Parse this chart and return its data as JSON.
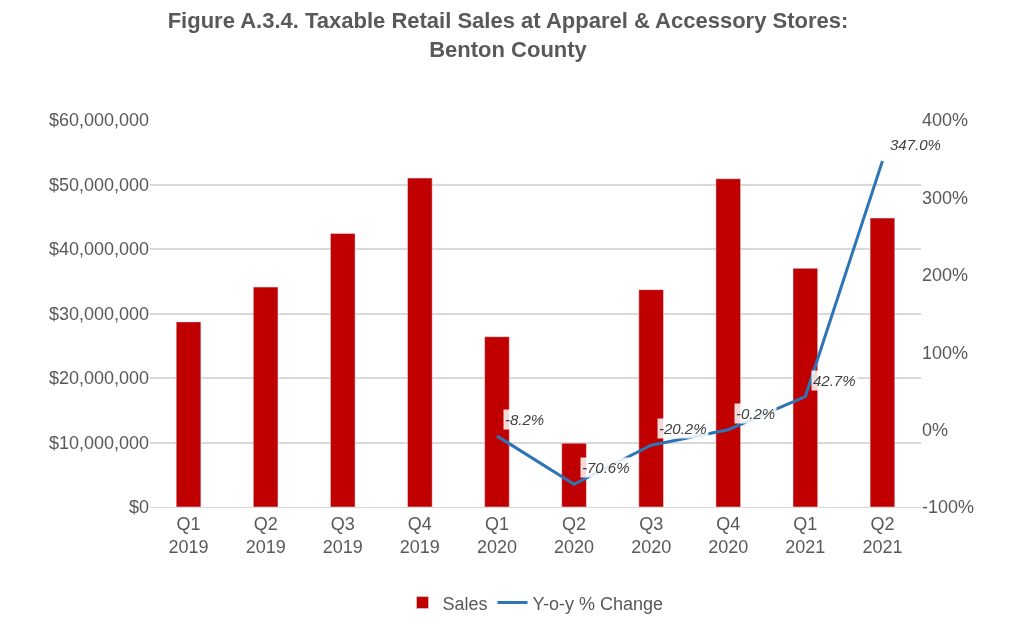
{
  "chart_data": {
    "type": "bar",
    "title": "Figure A.3.4. Taxable Retail Sales at Apparel & Accessory Stores: Benton County",
    "categories": [
      "Q1 2019",
      "Q2 2019",
      "Q3 2019",
      "Q4 2019",
      "Q1 2020",
      "Q2 2020",
      "Q3 2020",
      "Q4 2020",
      "Q1 2021",
      "Q2 2021"
    ],
    "series": [
      {
        "name": "Sales",
        "color": "#c00000",
        "values": [
          28700000,
          34100000,
          42400000,
          51000000,
          26400000,
          9900000,
          33700000,
          50900000,
          37000000,
          44800000
        ]
      },
      {
        "name": "Y-o-y % Change",
        "type": "line",
        "axis": "y2",
        "color": "#2e75b6",
        "values": [
          null,
          null,
          null,
          null,
          -8.2,
          -70.6,
          -20.2,
          -0.2,
          42.7,
          347.0
        ],
        "value_labels": [
          null,
          null,
          null,
          null,
          "-8.2%",
          "-70.6%",
          "-20.2%",
          "-0.2%",
          "42.7%",
          "347.0%"
        ]
      }
    ],
    "ylim": [
      0,
      60000000
    ],
    "yticks": [
      {
        "value": 0,
        "label": "$0"
      },
      {
        "value": 10000000,
        "label": "$10,000,000"
      },
      {
        "value": 20000000,
        "label": "$20,000,000"
      },
      {
        "value": 30000000,
        "label": "$30,000,000"
      },
      {
        "value": 40000000,
        "label": "$40,000,000"
      },
      {
        "value": 50000000,
        "label": "$50,000,000"
      },
      {
        "value": 60000000,
        "label": "$60,000,000"
      }
    ],
    "y2lim": [
      -100,
      400
    ],
    "y2ticks": [
      {
        "value": -100,
        "label": "-100%"
      },
      {
        "value": 0,
        "label": "0%"
      },
      {
        "value": 100,
        "label": "100%"
      },
      {
        "value": 200,
        "label": "200%"
      },
      {
        "value": 300,
        "label": "300%"
      },
      {
        "value": 400,
        "label": "400%"
      }
    ],
    "grid": "y",
    "legend": "bottom",
    "marker": "none",
    "line_style": "solid"
  }
}
